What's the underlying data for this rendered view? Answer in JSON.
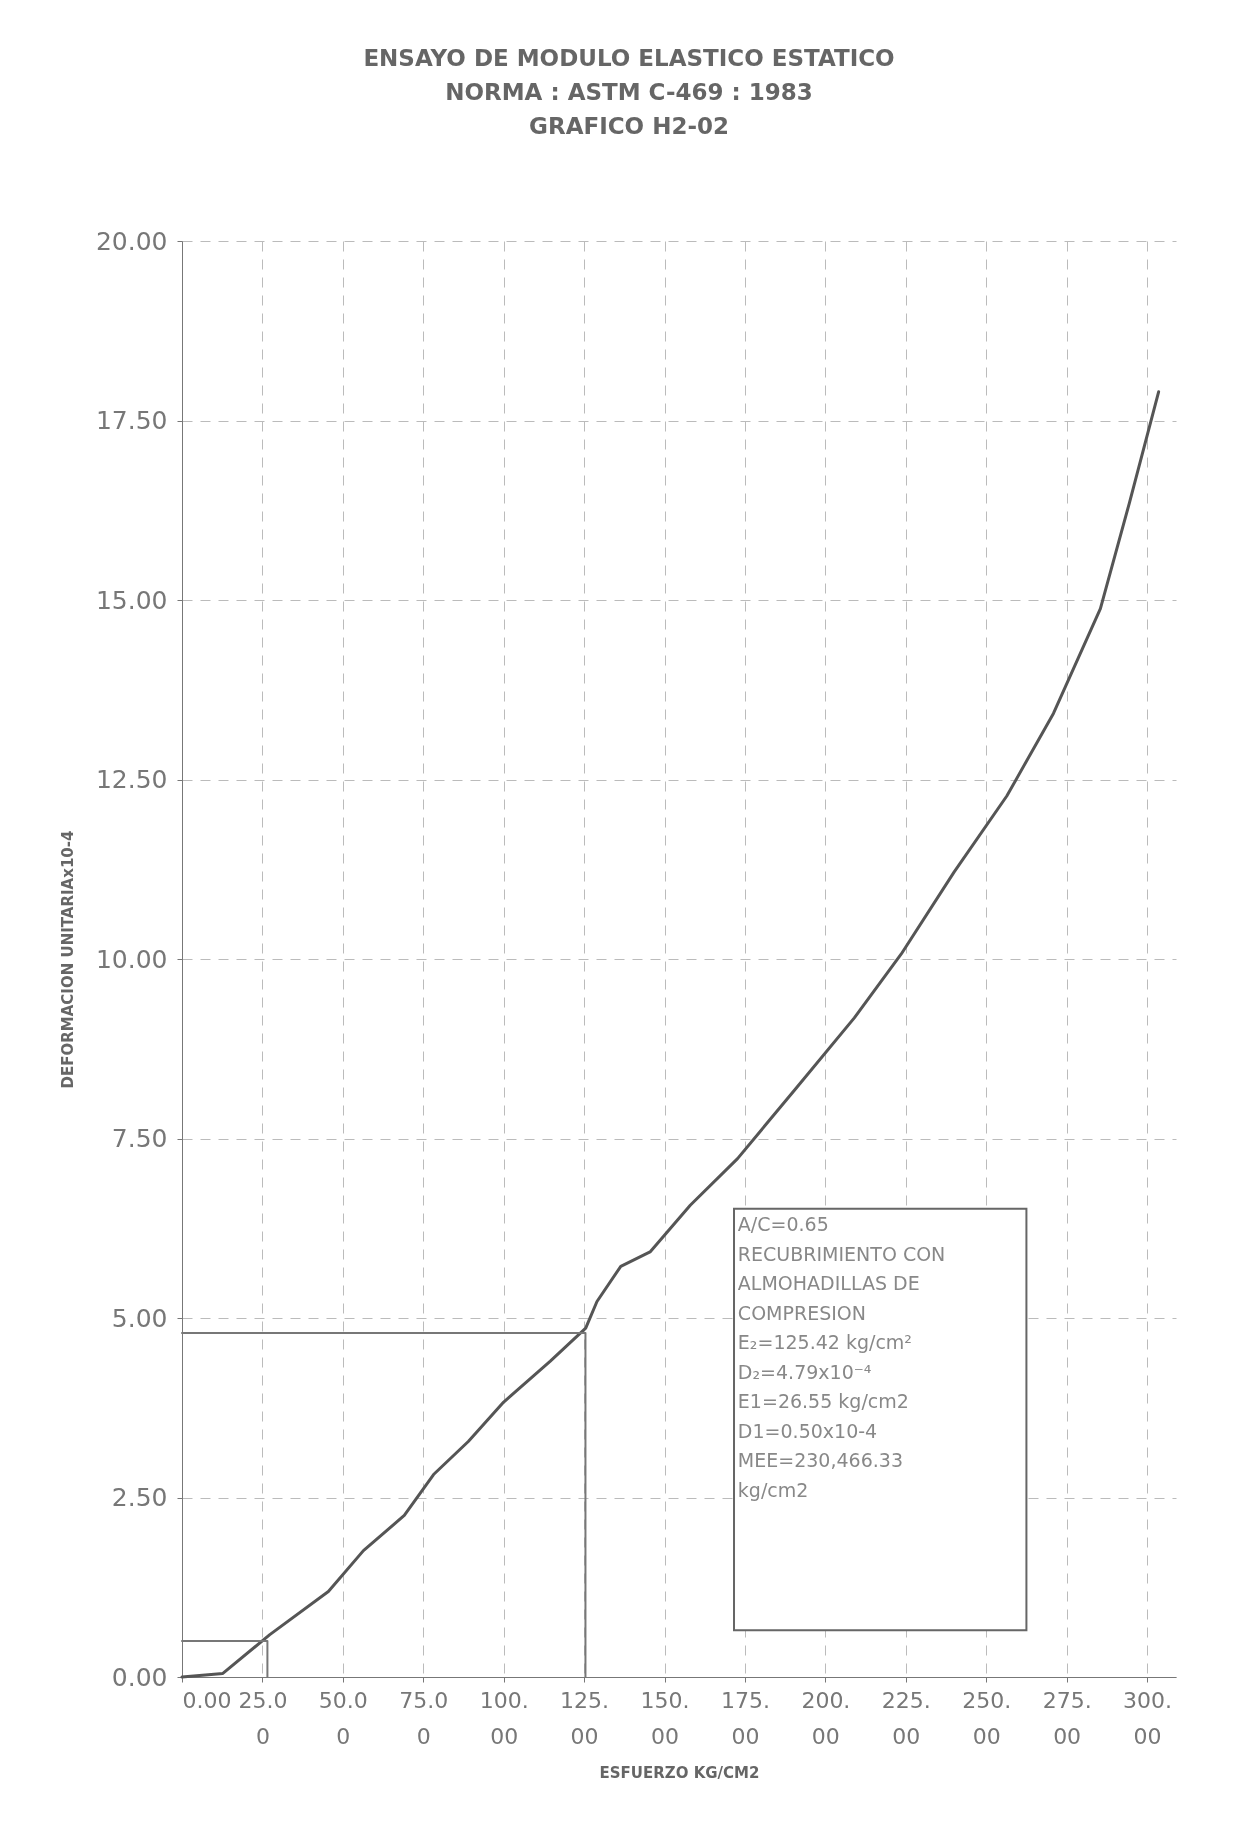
{
  "chart_data": {
    "type": "line",
    "title": [
      "ENSAYO DE MODULO ELASTICO ESTATICO",
      "NORMA : ASTM C-469 : 1983",
      "GRAFICO H2-02"
    ],
    "xlabel": "ESFUERZO KG/CM2",
    "ylabel": "DEFORMACION UNITARIAx10-4",
    "xlim": [
      0,
      309
    ],
    "ylim": [
      0,
      20
    ],
    "xticks": [
      {
        "value": 0,
        "label": "0.00"
      },
      {
        "value": 25,
        "label": "25.00"
      },
      {
        "value": 50,
        "label": "50.00"
      },
      {
        "value": 75,
        "label": "75.00"
      },
      {
        "value": 100,
        "label": "100.00"
      },
      {
        "value": 125,
        "label": "125.00"
      },
      {
        "value": 150,
        "label": "150.00"
      },
      {
        "value": 175,
        "label": "175.00"
      },
      {
        "value": 200,
        "label": "200.00"
      },
      {
        "value": 225,
        "label": "225.00"
      },
      {
        "value": 250,
        "label": "250.00"
      },
      {
        "value": 275,
        "label": "275.00"
      },
      {
        "value": 300,
        "label": "300.00"
      }
    ],
    "yticks": [
      {
        "value": 0,
        "label": "0.00"
      },
      {
        "value": 2.5,
        "label": "2.50"
      },
      {
        "value": 5,
        "label": "5.00"
      },
      {
        "value": 7.5,
        "label": "7.50"
      },
      {
        "value": 10,
        "label": "10.00"
      },
      {
        "value": 12.5,
        "label": "12.50"
      },
      {
        "value": 15,
        "label": "15.00"
      },
      {
        "value": 17.5,
        "label": "17.50"
      },
      {
        "value": 20,
        "label": "20.00"
      }
    ],
    "grid": true,
    "marker": "none",
    "line_style": "solid",
    "series": [
      {
        "color": "#555555",
        "x": [
          0,
          12.7,
          27.3,
          45.5,
          56.4,
          69.1,
          78.2,
          89,
          100,
          114.5,
          125.5,
          129,
          136.4,
          145.5,
          158,
          172.7,
          190.9,
          209,
          223.6,
          240,
          256.4,
          270.9,
          285.5,
          294.5,
          303.6
        ],
        "values": [
          0,
          0.05,
          0.59,
          1.19,
          1.76,
          2.25,
          2.82,
          3.28,
          3.83,
          4.4,
          4.86,
          5.23,
          5.72,
          5.92,
          6.57,
          7.22,
          8.2,
          9.18,
          10.07,
          11.21,
          12.27,
          13.42,
          14.88,
          16.35,
          17.9
        ]
      },
      {
        "color": "#777777",
        "x": [
          0,
          125.42,
          125.42
        ],
        "values": [
          4.79,
          4.79,
          0
        ]
      },
      {
        "color": "#777777",
        "x": [
          0,
          26.55,
          26.55
        ],
        "values": [
          0.5,
          0.5,
          0
        ]
      }
    ],
    "annotations": [
      {
        "text": [
          "A/C=0.65",
          "RECUBRIMIENTO CON",
          "ALMOHADILLAS DE",
          "COMPRESION",
          "E₂=125.42 kg/cm²",
          "D₂=4.79x10⁻⁴",
          "E1=26.55 kg/cm2",
          "D1=0.50x10-4",
          "MEE=230,466.33",
          "kg/cm2"
        ]
      }
    ]
  }
}
